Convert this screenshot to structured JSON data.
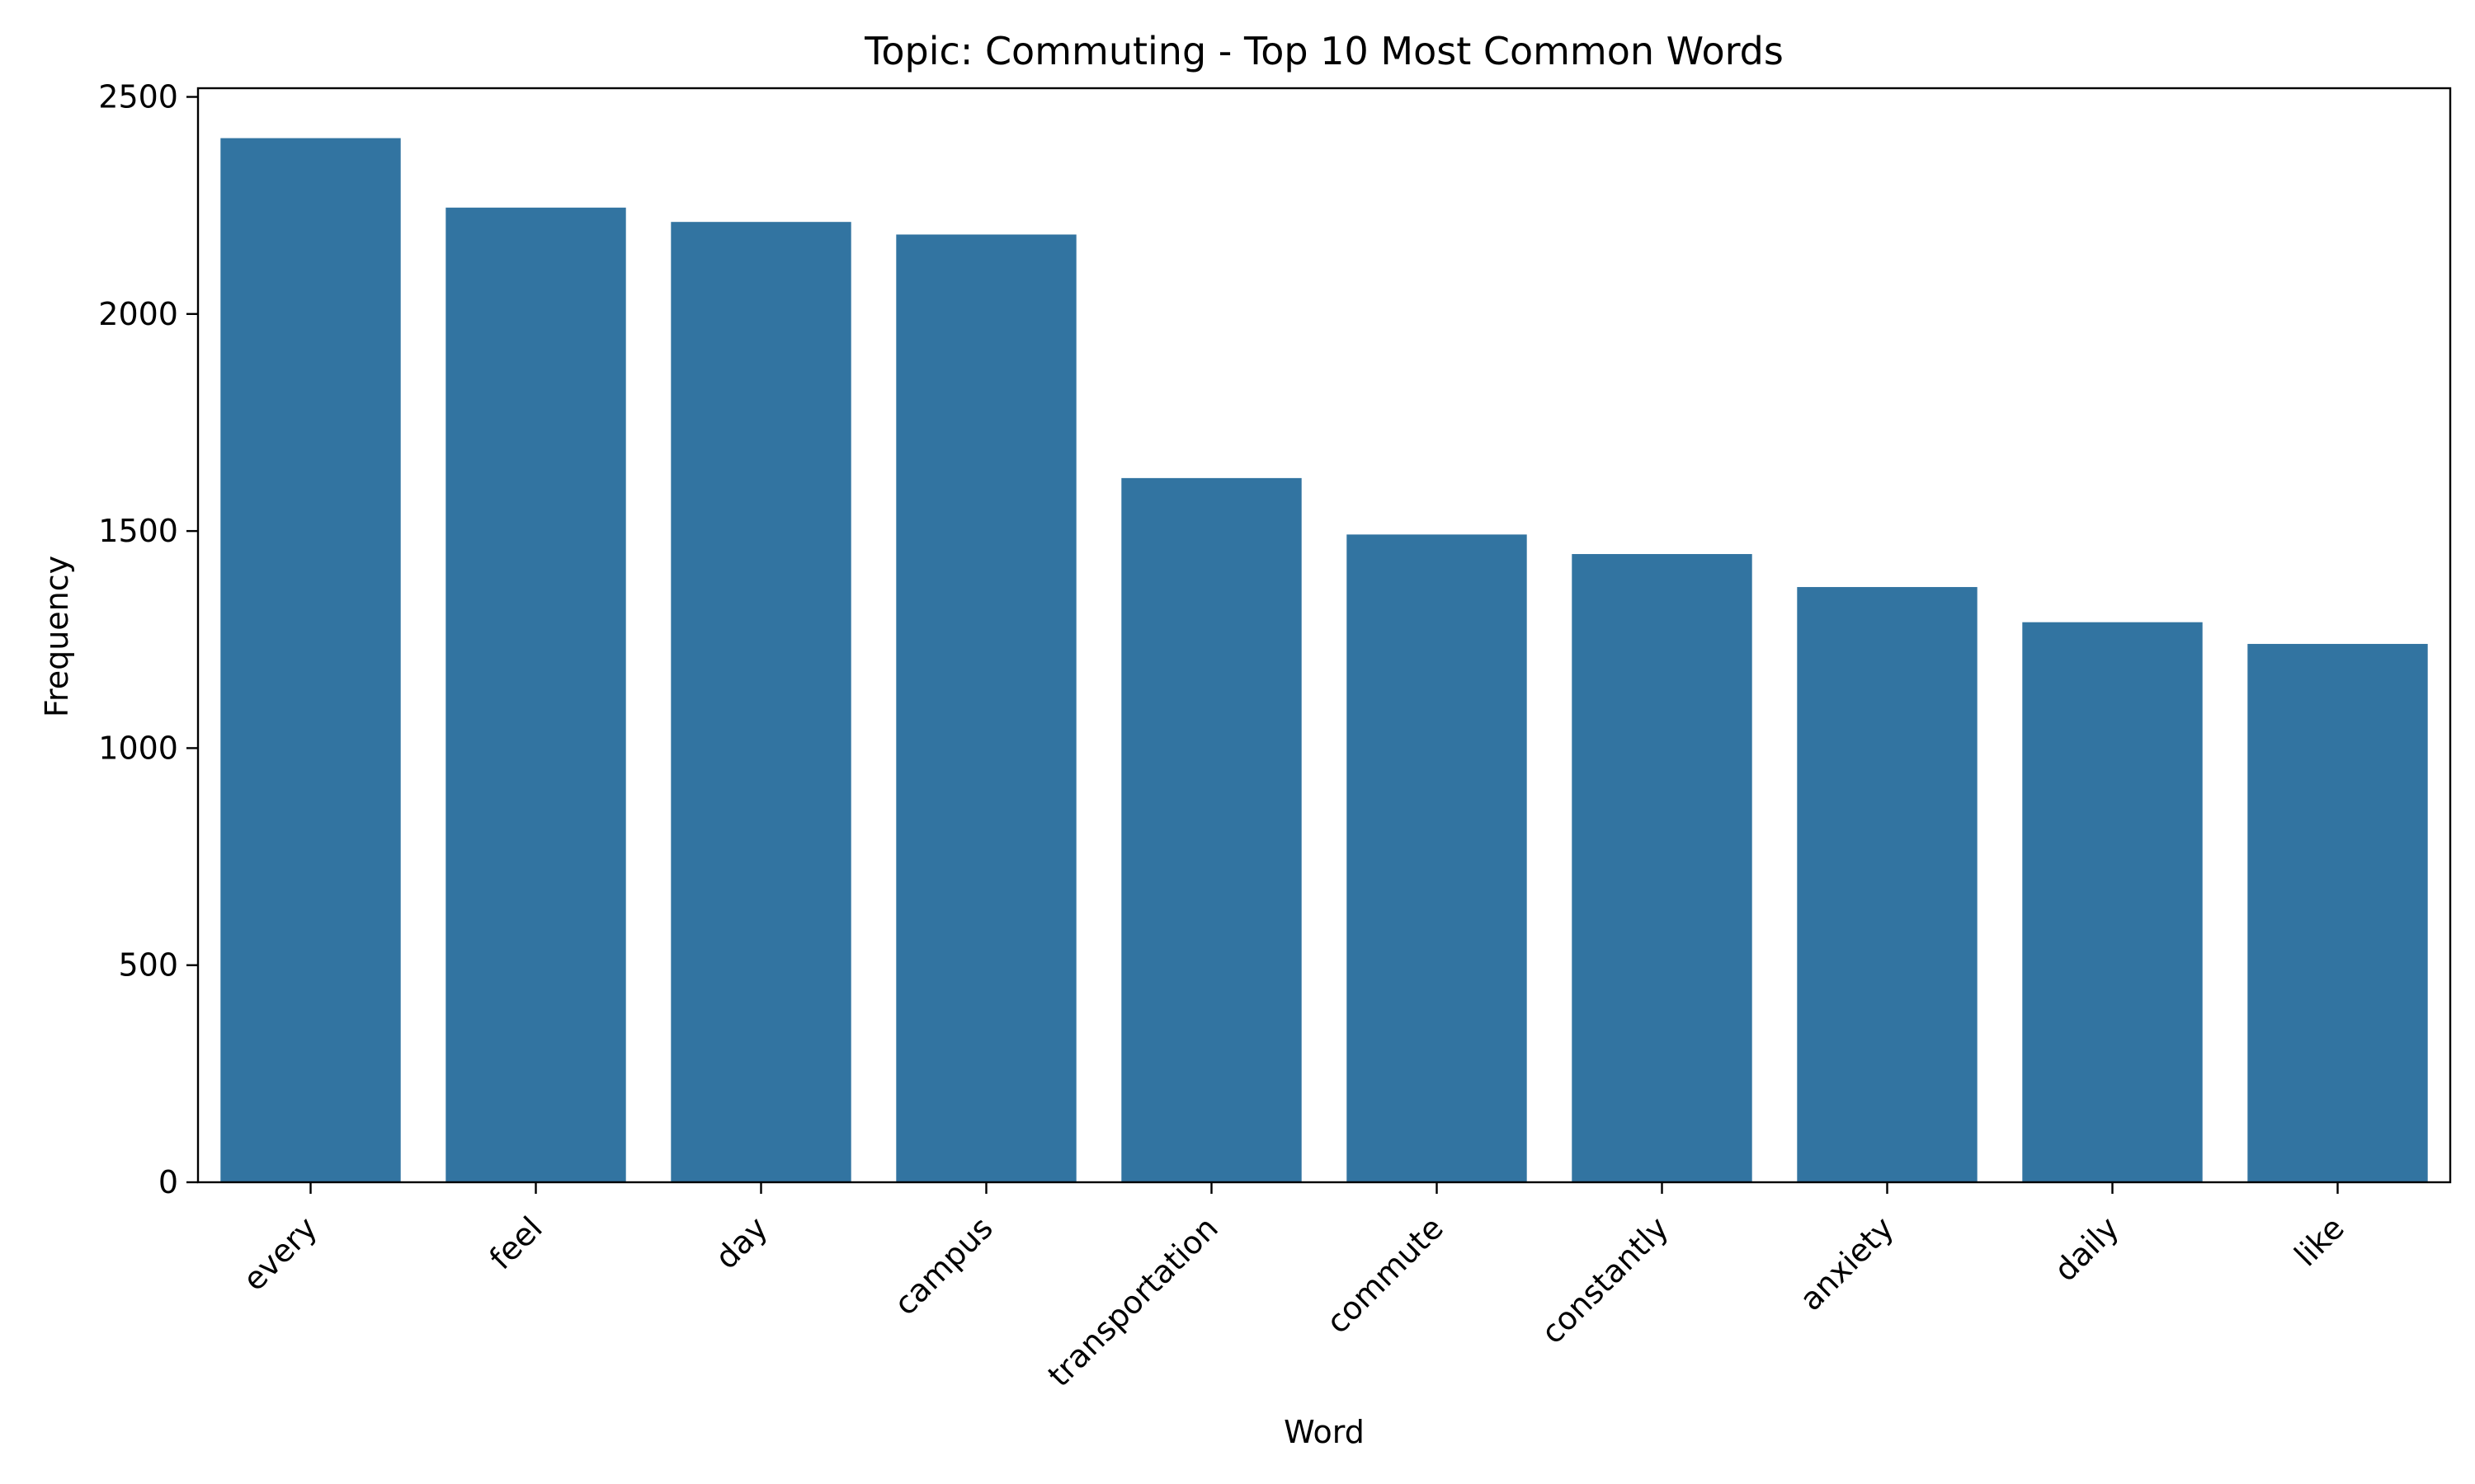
{
  "chart_data": {
    "type": "bar",
    "title": "Topic: Commuting - Top 10 Most Common Words",
    "xlabel": "Word",
    "ylabel": "Frequency",
    "categories": [
      "every",
      "feel",
      "day",
      "campus",
      "transportation",
      "commute",
      "constantly",
      "anxiety",
      "daily",
      "like"
    ],
    "values": [
      2405,
      2245,
      2212,
      2183,
      1622,
      1492,
      1447,
      1371,
      1290,
      1240
    ],
    "ylim": [
      0,
      2520
    ],
    "yticks": [
      0,
      500,
      1000,
      1500,
      2000,
      2500
    ],
    "grid": false,
    "legend": "none",
    "bar_color": "#3274a1",
    "x_tick_rotation_deg": 45
  }
}
